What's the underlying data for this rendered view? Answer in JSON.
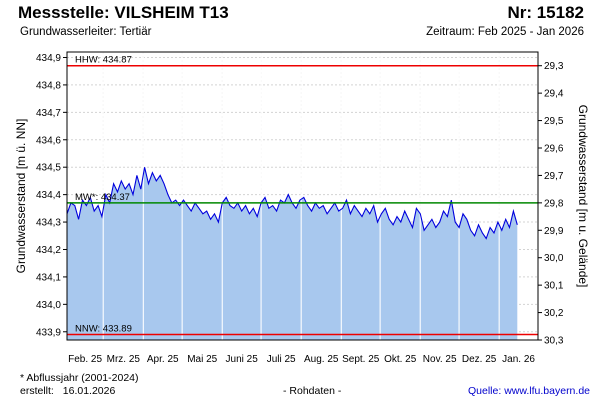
{
  "header": {
    "title": "Messstelle: VILSHEIM T13",
    "station_no": "Nr: 15182",
    "subtitle": "Grundwasserleiter: Tertiär",
    "period_label": "Zeitraum:",
    "period_value": "Feb 2025 - Jan 2026"
  },
  "footer": {
    "footnote": "* Abflussjahr (2001-2024)",
    "created_label": "erstellt:",
    "created_date": "16.01.2026",
    "raw_data": "- Rohdaten -",
    "source_label": "Quelle:",
    "source_url": "www.lfu.bayern.de"
  },
  "colors": {
    "area_fill": "#a8c8ee",
    "series_line": "#0000dd",
    "hhw_line": "#ee0000",
    "nnw_line": "#ee0000",
    "mw_line": "#008800",
    "grid": "#d3d3d3",
    "month_line": "#ffffff"
  },
  "chart_data": {
    "type": "area",
    "title": "",
    "ylabel_left": "Grundwasserstand [m ü. NN]",
    "ylabel_right": "Grundwasserstand [m u. Gelände]",
    "x_labels": [
      "Feb. 25",
      "Mrz. 25",
      "Apr. 25",
      "Mai 25",
      "Juni 25",
      "Juli 25",
      "Aug. 25",
      "Sept. 25",
      "Okt. 25",
      "Nov. 25",
      "Dez. 25",
      "Jan. 26"
    ],
    "xlim": [
      "2025-02-01",
      "2026-01-31"
    ],
    "ylim": [
      433.87,
      434.92
    ],
    "yticks_left": [
      "433,9",
      "434,0",
      "434,1",
      "434,2",
      "434,3",
      "434,4",
      "434,5",
      "434,6",
      "434,7",
      "434,8",
      "434,9"
    ],
    "yticks_right": [
      "29,3",
      "29,4",
      "29,5",
      "29,6",
      "29,7",
      "29,8",
      "29,9",
      "30,0",
      "30,1",
      "30,2",
      "30,3"
    ],
    "grid": true,
    "reference_lines": [
      {
        "label": "HHW: 434.87",
        "value": 434.87,
        "color": "#ee0000"
      },
      {
        "label": "MW*: 434.37",
        "value": 434.37,
        "color": "#008800"
      },
      {
        "label": "NNW: 433.89",
        "value": 433.89,
        "color": "#ee0000"
      }
    ],
    "series": [
      {
        "x": [
          "2025-02-01",
          "2025-02-04",
          "2025-02-07",
          "2025-02-10",
          "2025-02-13",
          "2025-02-16",
          "2025-02-19",
          "2025-02-22",
          "2025-02-25",
          "2025-02-28",
          "2025-03-03",
          "2025-03-06",
          "2025-03-09",
          "2025-03-12",
          "2025-03-15",
          "2025-03-18",
          "2025-03-21",
          "2025-03-24",
          "2025-03-27",
          "2025-03-30",
          "2025-04-02",
          "2025-04-05",
          "2025-04-08",
          "2025-04-11",
          "2025-04-14",
          "2025-04-17",
          "2025-04-20",
          "2025-04-23",
          "2025-04-26",
          "2025-04-29",
          "2025-05-02",
          "2025-05-05",
          "2025-05-08",
          "2025-05-11",
          "2025-05-14",
          "2025-05-17",
          "2025-05-20",
          "2025-05-23",
          "2025-05-26",
          "2025-05-29",
          "2025-06-01",
          "2025-06-04",
          "2025-06-07",
          "2025-06-10",
          "2025-06-13",
          "2025-06-16",
          "2025-06-19",
          "2025-06-22",
          "2025-06-25",
          "2025-06-28",
          "2025-07-01",
          "2025-07-04",
          "2025-07-07",
          "2025-07-10",
          "2025-07-13",
          "2025-07-16",
          "2025-07-19",
          "2025-07-22",
          "2025-07-25",
          "2025-07-28",
          "2025-07-31",
          "2025-08-03",
          "2025-08-06",
          "2025-08-09",
          "2025-08-12",
          "2025-08-15",
          "2025-08-18",
          "2025-08-21",
          "2025-08-24",
          "2025-08-27",
          "2025-08-30",
          "2025-09-02",
          "2025-09-05",
          "2025-09-08",
          "2025-09-11",
          "2025-09-14",
          "2025-09-17",
          "2025-09-20",
          "2025-09-23",
          "2025-09-26",
          "2025-09-29",
          "2025-10-02",
          "2025-10-05",
          "2025-10-08",
          "2025-10-11",
          "2025-10-14",
          "2025-10-17",
          "2025-10-20",
          "2025-10-23",
          "2025-10-26",
          "2025-10-29",
          "2025-11-01",
          "2025-11-04",
          "2025-11-07",
          "2025-11-10",
          "2025-11-13",
          "2025-11-16",
          "2025-11-19",
          "2025-11-22",
          "2025-11-25",
          "2025-11-28",
          "2025-12-01",
          "2025-12-04",
          "2025-12-07",
          "2025-12-10",
          "2025-12-13",
          "2025-12-16",
          "2025-12-19",
          "2025-12-22",
          "2025-12-25",
          "2025-12-28",
          "2025-12-31",
          "2026-01-03",
          "2026-01-06",
          "2026-01-09",
          "2026-01-12",
          "2026-01-15"
        ],
        "values": [
          434.33,
          434.37,
          434.36,
          434.31,
          434.38,
          434.36,
          434.39,
          434.34,
          434.36,
          434.32,
          434.4,
          434.37,
          434.44,
          434.41,
          434.45,
          434.42,
          434.44,
          434.4,
          434.47,
          434.42,
          434.5,
          434.44,
          434.48,
          434.45,
          434.47,
          434.44,
          434.4,
          434.37,
          434.38,
          434.36,
          434.38,
          434.36,
          434.34,
          434.37,
          434.35,
          434.33,
          434.34,
          434.31,
          434.33,
          434.3,
          434.37,
          434.39,
          434.36,
          434.35,
          434.37,
          434.34,
          434.36,
          434.33,
          434.35,
          434.32,
          434.37,
          434.39,
          434.35,
          434.36,
          434.34,
          434.38,
          434.37,
          434.4,
          434.37,
          434.35,
          434.38,
          434.39,
          434.36,
          434.34,
          434.37,
          434.35,
          434.36,
          434.33,
          434.35,
          434.37,
          434.34,
          434.35,
          434.38,
          434.33,
          434.36,
          434.34,
          434.32,
          434.35,
          434.33,
          434.36,
          434.3,
          434.33,
          434.35,
          434.31,
          434.29,
          434.32,
          434.3,
          434.34,
          434.31,
          434.28,
          434.35,
          434.33,
          434.27,
          434.29,
          434.31,
          434.28,
          434.3,
          434.34,
          434.32,
          434.38,
          434.3,
          434.28,
          434.33,
          434.31,
          434.27,
          434.25,
          434.29,
          434.26,
          434.24,
          434.28,
          434.26,
          434.3,
          434.27,
          434.31,
          434.28,
          434.34,
          434.29
        ]
      }
    ]
  }
}
